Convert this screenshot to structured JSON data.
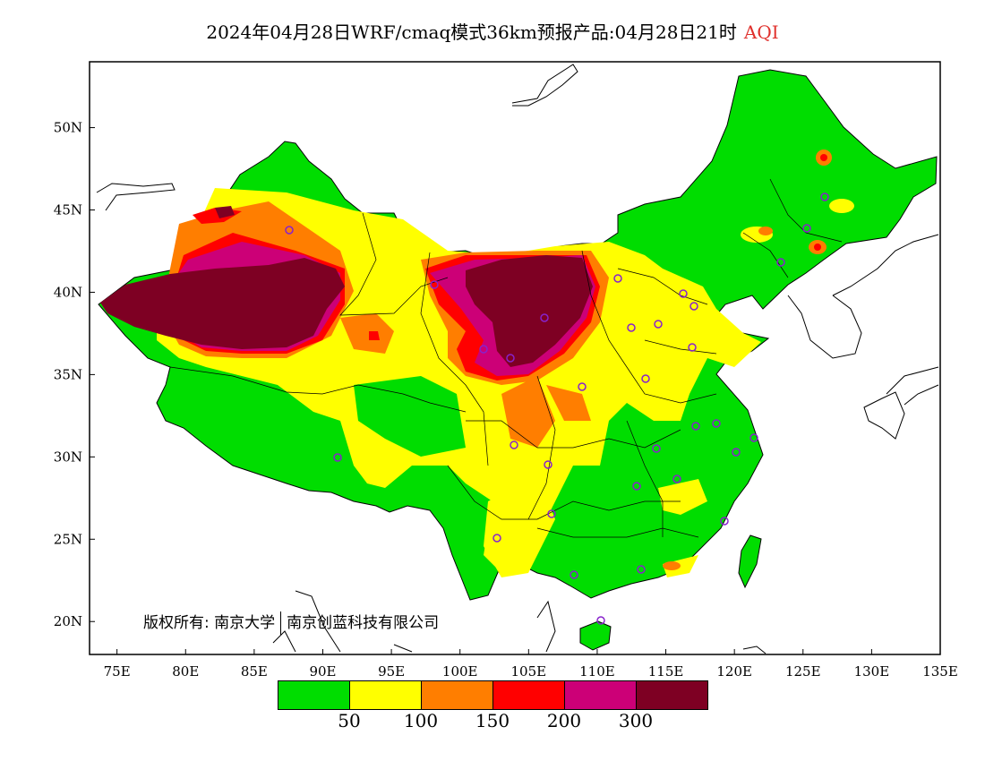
{
  "title": {
    "main": "2024年04月28日WRF/cmaq模式36km预报产品:04月28日21时",
    "variable": "AQI",
    "variable_color": "#e0302c"
  },
  "axes": {
    "x_ticks": [
      "75E",
      "80E",
      "85E",
      "90E",
      "95E",
      "100E",
      "105E",
      "110E",
      "115E",
      "120E",
      "125E",
      "130E",
      "135E"
    ],
    "y_ticks": [
      "50N",
      "45N",
      "40N",
      "35N",
      "30N",
      "25N",
      "20N"
    ],
    "lon_range": [
      73,
      135
    ],
    "lat_range": [
      18,
      54
    ]
  },
  "copyright": {
    "prefix": "版权所有:",
    "org1": "南京大学",
    "org2": "南京创蓝科技有限公司"
  },
  "legend": {
    "colors": [
      "#00dd00",
      "#ffff00",
      "#ff7e00",
      "#ff0000",
      "#cc0077",
      "#7e0023"
    ],
    "labels": [
      "50",
      "100",
      "150",
      "200",
      "300"
    ]
  },
  "station_marker_color": "#8822cc"
}
